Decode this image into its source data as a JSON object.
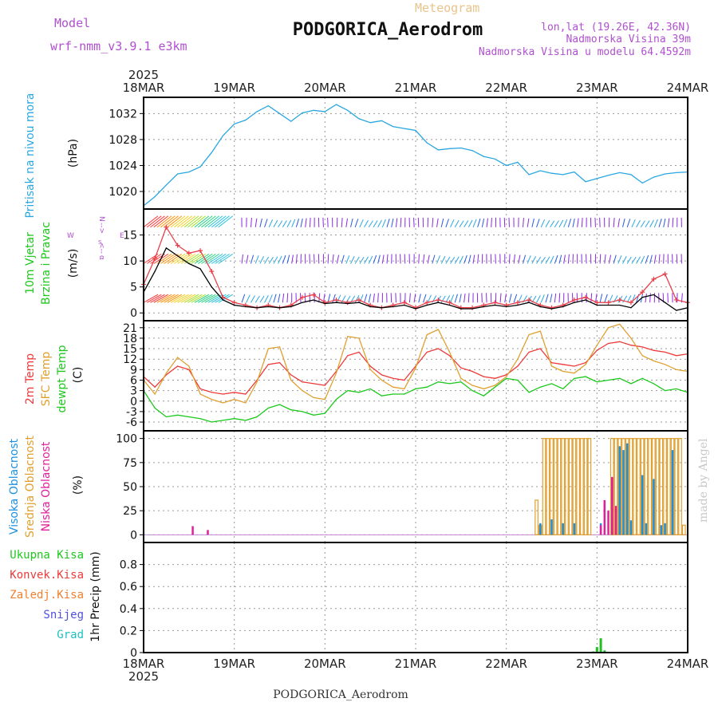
{
  "header": {
    "model_label": "Model",
    "model_name": "wrf-nmm_v3.9.1 e3km",
    "meteogram_label": "Meteogram",
    "station_title": "PODGORICA_Aerodrom",
    "lonlat": "lon,lat (19.26E, 42.36N)",
    "altitude": "Nadmorska Visina 39m",
    "model_altitude": "Nadmorska Visina u modelu 64.4592m",
    "footer_station": "PODGORICA_Aerodrom",
    "watermark": "made by Angel"
  },
  "colors": {
    "pressure": "#2aa7e0",
    "gust": "#e8404a",
    "wind_speed": "#000000",
    "temp2m": "#ee3a3a",
    "sfc_temp": "#e0a030",
    "dewpoint": "#1ec81e",
    "high_cloud": "#1e90e0",
    "mid_cloud": "#e0a030",
    "low_cloud": "#e0209a",
    "barb_purple": "#8a2be2",
    "barb_blue": "#2a5ae0",
    "precip_total": "#20c020",
    "violet_label": "#b050d0"
  },
  "time_axis": {
    "year": "2025",
    "ticks": [
      "18MAR",
      "19MAR",
      "20MAR",
      "21MAR",
      "22MAR",
      "23MAR",
      "24MAR"
    ],
    "hours_total": 144
  },
  "panels": {
    "pressure": {
      "labels": [
        "Pritisak na nivou mora",
        "(hPa)"
      ]
    },
    "wind": {
      "labels": [
        "10m Vjetar",
        "Brzina i Pravac",
        "(m/s)"
      ],
      "compass": {
        "north": "N",
        "south": "S",
        "east": "E",
        "west": "W",
        "left_arrow": "<--",
        "right_arrow": "-->",
        "lat_symbol": "α"
      }
    },
    "temperature": {
      "labels": [
        "2m Temp",
        "SFC Temp",
        "dewpt Temp",
        "(C)"
      ]
    },
    "cloud": {
      "labels": [
        "Visoka Oblacnost",
        "Srednja Oblacnost",
        "Niska Oblacnost",
        "(%)"
      ]
    },
    "precip": {
      "labels": [
        "1hr Precip (mm)"
      ],
      "legend": [
        "Ukupna Kisa",
        "Konvek.Kisa",
        "Zaledj.Kisa",
        "Snijeg",
        "Grad"
      ]
    }
  },
  "chart_data": [
    {
      "type": "line",
      "title": "Pritisak na nivou mora",
      "ylabel": "(hPa)",
      "x_unit": "hours since 18MAR 00Z",
      "ylim": [
        1017.3,
        1034.5
      ],
      "yticks": [
        "1020",
        "1024",
        "1028",
        "1032"
      ],
      "series": [
        {
          "name": "Pressure",
          "color_key": "pressure",
          "x": [
            0,
            3,
            6,
            9,
            12,
            15,
            18,
            21,
            24,
            27,
            30,
            33,
            36,
            39,
            42,
            45,
            48,
            51,
            54,
            57,
            60,
            63,
            66,
            69,
            72,
            75,
            78,
            81,
            84,
            87,
            90,
            93,
            96,
            99,
            102,
            105,
            108,
            111,
            114,
            117,
            120,
            123,
            126,
            129,
            132,
            135,
            138,
            141,
            144
          ],
          "values": [
            1017.8,
            1019.2,
            1021.0,
            1022.7,
            1023.0,
            1023.8,
            1026.0,
            1028.6,
            1030.4,
            1031.0,
            1032.3,
            1033.2,
            1032.0,
            1030.8,
            1032.1,
            1032.5,
            1032.3,
            1033.4,
            1032.5,
            1031.2,
            1030.6,
            1030.9,
            1030.0,
            1029.7,
            1029.4,
            1027.5,
            1026.4,
            1026.6,
            1026.7,
            1026.3,
            1025.4,
            1025.0,
            1024.0,
            1024.5,
            1022.6,
            1023.2,
            1022.8,
            1022.6,
            1023.0,
            1021.5,
            1022.0,
            1022.5,
            1022.9,
            1022.6,
            1021.3,
            1022.2,
            1022.7,
            1022.9,
            1023.0
          ]
        }
      ]
    },
    {
      "type": "line",
      "title": "10m Vjetar Brzina i Pravac",
      "ylabel": "(m/s)",
      "x_unit": "hours since 18MAR 00Z",
      "ylim": [
        -1.5,
        20
      ],
      "yticks": [
        "0",
        "5",
        "10",
        "15"
      ],
      "series": [
        {
          "name": "Wind gust",
          "color_key": "gust",
          "x": [
            0,
            3,
            6,
            9,
            12,
            15,
            18,
            21,
            24,
            27,
            30,
            33,
            36,
            39,
            42,
            45,
            48,
            51,
            54,
            57,
            60,
            63,
            66,
            69,
            72,
            75,
            78,
            81,
            84,
            87,
            90,
            93,
            96,
            99,
            102,
            105,
            108,
            111,
            114,
            117,
            120,
            123,
            126,
            129,
            132,
            135,
            138,
            141,
            144
          ],
          "values": [
            5.5,
            10.5,
            16.5,
            13.0,
            11.5,
            12.0,
            8.0,
            3.0,
            2.0,
            1.5,
            1.0,
            1.5,
            1.0,
            1.5,
            3.0,
            3.5,
            2.0,
            2.5,
            2.0,
            2.5,
            1.5,
            1.0,
            1.5,
            2.0,
            1.0,
            2.0,
            2.5,
            2.0,
            1.0,
            1.0,
            1.5,
            2.0,
            1.5,
            2.0,
            2.5,
            1.5,
            1.0,
            1.5,
            2.5,
            3.0,
            2.0,
            2.0,
            2.5,
            2.0,
            4.0,
            6.5,
            7.5,
            2.5,
            2.0
          ]
        },
        {
          "name": "Wind speed",
          "color_key": "wind_speed",
          "x": [
            0,
            3,
            6,
            9,
            12,
            15,
            18,
            21,
            24,
            27,
            30,
            33,
            36,
            39,
            42,
            45,
            48,
            51,
            54,
            57,
            60,
            63,
            66,
            69,
            72,
            75,
            78,
            81,
            84,
            87,
            90,
            93,
            96,
            99,
            102,
            105,
            108,
            111,
            114,
            117,
            120,
            123,
            126,
            129,
            132,
            135,
            138,
            141,
            144
          ],
          "values": [
            4.0,
            8.0,
            12.5,
            11.0,
            9.5,
            8.5,
            5.0,
            2.5,
            1.5,
            1.2,
            1.0,
            1.2,
            1.0,
            1.2,
            2.0,
            2.5,
            1.8,
            2.0,
            1.8,
            2.0,
            1.2,
            1.0,
            1.2,
            1.5,
            0.8,
            1.5,
            2.0,
            1.5,
            0.8,
            0.8,
            1.2,
            1.5,
            1.2,
            1.5,
            2.0,
            1.2,
            0.8,
            1.2,
            2.0,
            2.5,
            1.5,
            1.5,
            1.5,
            1.0,
            3.0,
            3.5,
            2.0,
            0.5,
            1.0
          ]
        }
      ]
    },
    {
      "type": "line",
      "title": "2m Temp / SFC Temp / dewpt Temp",
      "ylabel": "(C)",
      "x_unit": "hours since 18MAR 00Z",
      "ylim": [
        -8.5,
        23
      ],
      "yticks": [
        "-6",
        "-3",
        "0",
        "3",
        "6",
        "9",
        "12",
        "15",
        "18",
        "21"
      ],
      "series": [
        {
          "name": "2m Temp",
          "color_key": "temp2m",
          "x": [
            0,
            3,
            6,
            9,
            12,
            15,
            18,
            21,
            24,
            27,
            30,
            33,
            36,
            39,
            42,
            45,
            48,
            51,
            54,
            57,
            60,
            63,
            66,
            69,
            72,
            75,
            78,
            81,
            84,
            87,
            90,
            93,
            96,
            99,
            102,
            105,
            108,
            111,
            114,
            117,
            120,
            123,
            126,
            129,
            132,
            135,
            138,
            141,
            144
          ],
          "values": [
            7.0,
            4.0,
            7.5,
            10.0,
            9.0,
            3.5,
            2.5,
            2.0,
            2.5,
            2.0,
            6.0,
            10.5,
            11.0,
            7.5,
            5.5,
            5.0,
            4.5,
            8.5,
            13.0,
            14.0,
            10.0,
            7.5,
            6.5,
            6.0,
            10.0,
            14.0,
            15.0,
            13.0,
            9.5,
            8.5,
            7.0,
            6.5,
            7.5,
            10.0,
            14.0,
            15.0,
            11.0,
            10.5,
            10.0,
            11.0,
            14.5,
            16.5,
            17.0,
            16.0,
            15.5,
            14.5,
            14.0,
            13.0,
            13.5
          ]
        },
        {
          "name": "SFC Temp",
          "color_key": "sfc_temp",
          "x": [
            0,
            3,
            6,
            9,
            12,
            15,
            18,
            21,
            24,
            27,
            30,
            33,
            36,
            39,
            42,
            45,
            48,
            51,
            54,
            57,
            60,
            63,
            66,
            69,
            72,
            75,
            78,
            81,
            84,
            87,
            90,
            93,
            96,
            99,
            102,
            105,
            108,
            111,
            114,
            117,
            120,
            123,
            126,
            129,
            132,
            135,
            138,
            141,
            144
          ],
          "values": [
            6.0,
            2.0,
            8.0,
            12.5,
            10.0,
            2.0,
            0.5,
            -0.5,
            0.5,
            -0.5,
            5.5,
            15.0,
            15.5,
            6.0,
            3.0,
            1.0,
            0.5,
            8.0,
            18.5,
            18.0,
            9.0,
            6.0,
            4.0,
            3.5,
            9.5,
            19.0,
            20.5,
            14.0,
            6.5,
            4.5,
            3.5,
            4.5,
            7.0,
            12.0,
            19.0,
            20.0,
            10.0,
            8.5,
            8.0,
            10.5,
            16.0,
            21.0,
            22.0,
            18.0,
            13.0,
            11.5,
            10.5,
            9.0,
            8.5
          ]
        },
        {
          "name": "dewpt Temp",
          "color_key": "dewpoint",
          "x": [
            0,
            3,
            6,
            9,
            12,
            15,
            18,
            21,
            24,
            27,
            30,
            33,
            36,
            39,
            42,
            45,
            48,
            51,
            54,
            57,
            60,
            63,
            66,
            69,
            72,
            75,
            78,
            81,
            84,
            87,
            90,
            93,
            96,
            99,
            102,
            105,
            108,
            111,
            114,
            117,
            120,
            123,
            126,
            129,
            132,
            135,
            138,
            141,
            144
          ],
          "values": [
            3.0,
            -2.0,
            -4.5,
            -4.0,
            -4.5,
            -5.0,
            -6.0,
            -5.5,
            -5.0,
            -5.5,
            -4.5,
            -2.0,
            -1.0,
            -2.5,
            -3.0,
            -4.0,
            -3.5,
            0.5,
            3.0,
            2.5,
            3.5,
            1.5,
            2.0,
            2.0,
            3.5,
            4.0,
            5.5,
            5.0,
            5.5,
            3.0,
            1.5,
            4.0,
            6.5,
            6.0,
            2.5,
            4.0,
            5.0,
            3.5,
            6.5,
            7.0,
            5.5,
            6.0,
            6.5,
            5.0,
            6.5,
            5.0,
            3.0,
            3.5,
            2.5
          ]
        }
      ]
    },
    {
      "type": "bar",
      "title": "Visoka / Srednja / Niska Oblacnost",
      "ylabel": "(%)",
      "x_unit": "hours since 18MAR 00Z",
      "ylim": [
        -8,
        108
      ],
      "yticks": [
        "0",
        "25",
        "50",
        "75",
        "100"
      ],
      "series": [
        {
          "name": "Srednja Oblacnost",
          "color_key": "mid_cloud",
          "x": [
            104,
            105,
            106,
            107,
            108,
            109,
            110,
            111,
            112,
            113,
            114,
            115,
            116,
            117,
            118,
            119,
            120,
            121,
            122,
            123,
            124,
            125,
            126,
            127,
            128,
            129,
            130,
            131,
            132,
            133,
            134,
            135,
            136,
            137,
            138,
            139,
            140,
            141,
            142,
            143
          ],
          "values": [
            36,
            10,
            100,
            100,
            100,
            100,
            100,
            100,
            100,
            100,
            100,
            100,
            100,
            100,
            100,
            0,
            0,
            0,
            0,
            0,
            100,
            100,
            100,
            100,
            100,
            100,
            100,
            100,
            100,
            100,
            100,
            100,
            100,
            100,
            100,
            100,
            100,
            100,
            100,
            10
          ]
        },
        {
          "name": "Visoka Oblacnost",
          "color_key": "high_cloud",
          "x": [
            105,
            108,
            111,
            114,
            121,
            124,
            126,
            127,
            128,
            129,
            132,
            133,
            135,
            137,
            138,
            140
          ],
          "values": [
            12,
            16,
            12,
            12,
            12,
            18,
            92,
            88,
            95,
            15,
            62,
            12,
            58,
            10,
            12,
            88
          ]
        },
        {
          "name": "Niska Oblacnost",
          "color_key": "low_cloud",
          "x": [
            13,
            17,
            121,
            122,
            123,
            124,
            125
          ],
          "values": [
            9,
            5,
            10,
            36,
            25,
            60,
            30
          ]
        }
      ]
    },
    {
      "type": "bar",
      "title": "1hr Precip",
      "ylabel": "(mm)",
      "x_unit": "hours since 18MAR 00Z",
      "ylim": [
        0,
        1.0
      ],
      "yticks": [
        "0",
        "0.2",
        "0.4",
        "0.6",
        "0.8"
      ],
      "series": [
        {
          "name": "Ukupna Kisa",
          "color_key": "precip_total",
          "x": [
            119,
            120,
            121,
            122
          ],
          "values": [
            0.01,
            0.05,
            0.13,
            0.02
          ]
        }
      ]
    }
  ]
}
